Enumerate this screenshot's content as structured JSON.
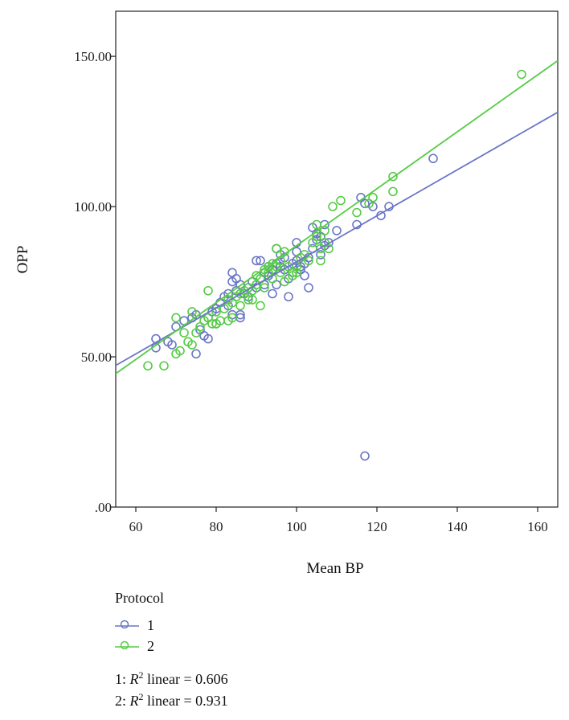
{
  "chart_data": {
    "type": "scatter",
    "xlabel": "Mean BP",
    "ylabel": "OPP",
    "xlim": [
      55,
      165
    ],
    "ylim": [
      0,
      165
    ],
    "x_ticks": [
      "60",
      "80",
      "100",
      "120",
      "140",
      "160"
    ],
    "x_tick_values": [
      60,
      80,
      100,
      120,
      140,
      160
    ],
    "y_ticks": [
      ".00",
      "50.00",
      "100.00",
      "150.00"
    ],
    "y_tick_values": [
      0,
      50,
      100,
      150
    ],
    "legend_title": "Protocol",
    "series": [
      {
        "name": "1",
        "color": "#6a76c6",
        "fit": {
          "intercept": 5.0,
          "slope": 0.766
        },
        "fit_label": "1: R2 linear = 0.606",
        "points": [
          [
            65,
            56
          ],
          [
            65,
            53
          ],
          [
            68,
            55
          ],
          [
            69,
            54
          ],
          [
            70,
            60
          ],
          [
            72,
            62
          ],
          [
            74,
            63
          ],
          [
            75,
            51
          ],
          [
            75,
            64
          ],
          [
            76,
            59
          ],
          [
            77,
            57
          ],
          [
            78,
            56
          ],
          [
            78,
            63
          ],
          [
            79,
            65
          ],
          [
            80,
            66
          ],
          [
            80,
            61
          ],
          [
            81,
            68
          ],
          [
            82,
            70
          ],
          [
            83,
            67
          ],
          [
            83,
            71
          ],
          [
            84,
            75
          ],
          [
            84,
            78
          ],
          [
            84,
            64
          ],
          [
            85,
            72
          ],
          [
            85,
            76
          ],
          [
            86,
            74
          ],
          [
            86,
            63
          ],
          [
            86,
            64
          ],
          [
            87,
            71
          ],
          [
            88,
            70
          ],
          [
            88,
            73
          ],
          [
            89,
            75
          ],
          [
            90,
            73
          ],
          [
            90,
            82
          ],
          [
            91,
            76
          ],
          [
            91,
            82
          ],
          [
            92,
            78
          ],
          [
            92,
            74
          ],
          [
            93,
            80
          ],
          [
            93,
            77
          ],
          [
            94,
            79
          ],
          [
            94,
            71
          ],
          [
            95,
            81
          ],
          [
            95,
            86
          ],
          [
            95,
            74
          ],
          [
            96,
            80
          ],
          [
            96,
            84
          ],
          [
            97,
            79
          ],
          [
            97,
            83
          ],
          [
            98,
            70
          ],
          [
            98,
            76
          ],
          [
            99,
            81
          ],
          [
            100,
            82
          ],
          [
            100,
            88
          ],
          [
            100,
            85
          ],
          [
            101,
            79
          ],
          [
            101,
            80
          ],
          [
            102,
            77
          ],
          [
            102,
            81
          ],
          [
            103,
            73
          ],
          [
            103,
            83
          ],
          [
            104,
            93
          ],
          [
            104,
            86
          ],
          [
            105,
            89
          ],
          [
            105,
            91
          ],
          [
            106,
            84
          ],
          [
            106,
            90
          ],
          [
            107,
            94
          ],
          [
            107,
            87
          ],
          [
            108,
            88
          ],
          [
            110,
            92
          ],
          [
            115,
            94
          ],
          [
            116,
            103
          ],
          [
            117,
            101
          ],
          [
            119,
            100
          ],
          [
            121,
            97
          ],
          [
            123,
            100
          ],
          [
            134,
            116
          ],
          [
            117,
            17
          ]
        ]
      },
      {
        "name": "2",
        "color": "#55cc44",
        "fit": {
          "intercept": -7.7,
          "slope": 0.947
        },
        "fit_label": "2: R2 linear = 0.931",
        "points": [
          [
            63,
            47
          ],
          [
            67,
            47
          ],
          [
            70,
            51
          ],
          [
            70,
            63
          ],
          [
            71,
            52
          ],
          [
            72,
            58
          ],
          [
            73,
            55
          ],
          [
            74,
            54
          ],
          [
            74,
            65
          ],
          [
            75,
            58
          ],
          [
            76,
            60
          ],
          [
            77,
            62
          ],
          [
            78,
            72
          ],
          [
            78,
            63
          ],
          [
            79,
            61
          ],
          [
            80,
            61
          ],
          [
            80,
            65
          ],
          [
            81,
            62
          ],
          [
            82,
            66
          ],
          [
            83,
            62
          ],
          [
            83,
            69
          ],
          [
            84,
            63
          ],
          [
            84,
            68
          ],
          [
            85,
            70
          ],
          [
            86,
            67
          ],
          [
            86,
            71
          ],
          [
            87,
            72
          ],
          [
            88,
            73
          ],
          [
            88,
            69
          ],
          [
            89,
            69
          ],
          [
            89,
            72
          ],
          [
            90,
            74
          ],
          [
            90,
            77
          ],
          [
            91,
            67
          ],
          [
            91,
            76
          ],
          [
            92,
            79
          ],
          [
            92,
            73
          ],
          [
            93,
            78
          ],
          [
            93,
            80
          ],
          [
            94,
            81
          ],
          [
            94,
            76
          ],
          [
            95,
            86
          ],
          [
            95,
            80
          ],
          [
            96,
            78
          ],
          [
            96,
            82
          ],
          [
            97,
            85
          ],
          [
            97,
            75
          ],
          [
            98,
            80
          ],
          [
            99,
            77
          ],
          [
            99,
            78
          ],
          [
            100,
            78
          ],
          [
            100,
            80
          ],
          [
            101,
            83
          ],
          [
            102,
            84
          ],
          [
            103,
            82
          ],
          [
            104,
            88
          ],
          [
            105,
            90
          ],
          [
            105,
            94
          ],
          [
            106,
            82
          ],
          [
            106,
            86
          ],
          [
            107,
            88
          ],
          [
            107,
            92
          ],
          [
            108,
            86
          ],
          [
            109,
            100
          ],
          [
            111,
            102
          ],
          [
            115,
            98
          ],
          [
            118,
            101
          ],
          [
            119,
            103
          ],
          [
            124,
            105
          ],
          [
            124,
            110
          ],
          [
            156,
            144
          ]
        ]
      }
    ]
  },
  "legend": {
    "title": "Protocol",
    "items": [
      "1",
      "2"
    ]
  },
  "fit_notes": [
    {
      "prefix": "1: ",
      "r": "R",
      "sup": "2",
      "suffix": " linear = 0.606"
    },
    {
      "prefix": "2: ",
      "r": "R",
      "sup": "2",
      "suffix": " linear = 0.931"
    }
  ]
}
